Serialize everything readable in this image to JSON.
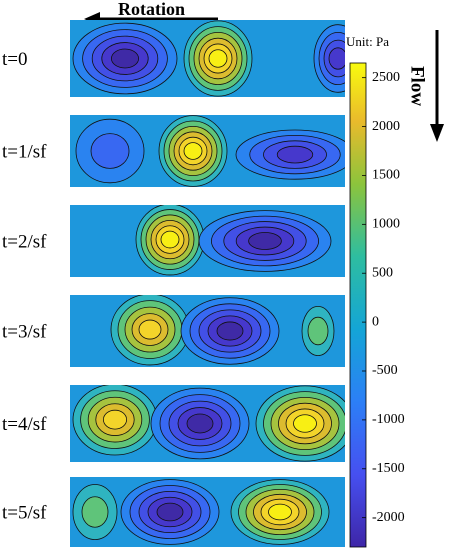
{
  "chart_data": {
    "type": "contour",
    "annotations": {
      "rotation": "Rotation",
      "flow": "Flow",
      "unit": "Unit: Pa"
    },
    "panels": [
      "t=0",
      "t=1/sf",
      "t=2/sf",
      "t=3/sf",
      "t=4/sf",
      "t=5/sf"
    ],
    "colorbar": {
      "lim": [
        -2300,
        2650
      ],
      "ticks": [
        -2000,
        -1500,
        -1000,
        -500,
        0,
        500,
        1000,
        1500,
        2000,
        2500
      ]
    }
  }
}
